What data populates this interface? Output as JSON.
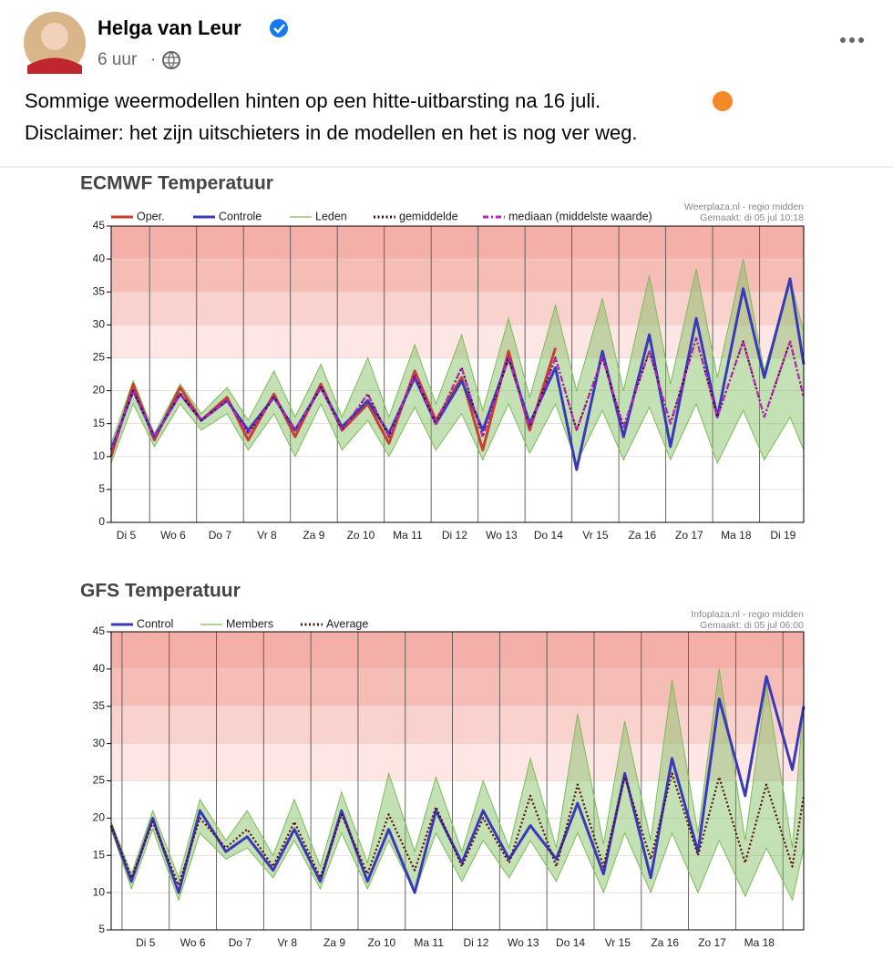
{
  "post": {
    "author": "Helga van Leur",
    "time": "6 uur",
    "text": [
      "Sommige weermodellen hinten op een hitte-uitbarsting na 16 juli.",
      "Disclaimer: het zijn uitschieters in de modellen en het is nog ver weg."
    ]
  },
  "chart_data": [
    {
      "type": "line",
      "title": "ECMWF Temperatuur",
      "source": [
        "Weerplaza.nl - regio midden",
        "Gemaakt: di 05 jul 10:18"
      ],
      "xlim": [
        5.18,
        19.94
      ],
      "ylim": [
        0,
        45
      ],
      "yticks": [
        0,
        5,
        10,
        15,
        20,
        25,
        30,
        35,
        40,
        45
      ],
      "xticks": [
        {
          "value": 5.5,
          "label": "Di 5"
        },
        {
          "value": 6.5,
          "label": "Wo 6"
        },
        {
          "value": 7.5,
          "label": "Do 7"
        },
        {
          "value": 8.5,
          "label": "Vr 8"
        },
        {
          "value": 9.5,
          "label": "Za 9"
        },
        {
          "value": 10.5,
          "label": "Zo 10"
        },
        {
          "value": 11.5,
          "label": "Ma 11"
        },
        {
          "value": 12.5,
          "label": "Di 12"
        },
        {
          "value": 13.5,
          "label": "Wo 13"
        },
        {
          "value": 14.5,
          "label": "Do 14"
        },
        {
          "value": 15.5,
          "label": "Vr 15"
        },
        {
          "value": 16.5,
          "label": "Za 16"
        },
        {
          "value": 17.5,
          "label": "Zo 17"
        },
        {
          "value": 18.5,
          "label": "Ma 18"
        },
        {
          "value": 19.5,
          "label": "Di 19"
        }
      ],
      "xgrid": [
        6,
        7,
        8,
        9,
        10,
        11,
        12,
        13,
        14,
        15,
        16,
        17,
        18,
        19
      ],
      "zones": [
        {
          "from": 25,
          "to": 30,
          "color": "#fde6e3"
        },
        {
          "from": 30,
          "to": 35,
          "color": "#fad2cd"
        },
        {
          "from": 35,
          "to": 40,
          "color": "#f6bdb6"
        },
        {
          "from": 40,
          "to": 45,
          "color": "#f4b0a8"
        }
      ],
      "x": [
        5.18,
        5.65,
        6.1,
        6.65,
        7.1,
        7.65,
        8.1,
        8.65,
        9.1,
        9.65,
        10.1,
        10.65,
        11.1,
        11.65,
        12.1,
        12.65,
        13.1,
        13.65,
        14.1,
        14.65,
        15.1,
        15.65,
        16.1,
        16.65,
        17.1,
        17.65,
        18.1,
        18.65,
        19.1,
        19.65,
        19.94
      ],
      "series": [
        {
          "name": "Oper.",
          "color": "#c8402f",
          "style": "line",
          "values": [
            10,
            21,
            12.5,
            20.5,
            15.5,
            19,
            12.5,
            19.5,
            13,
            21,
            14,
            18,
            12,
            23,
            15.5,
            22,
            11,
            26,
            14,
            26.5,
            null,
            null,
            null,
            null,
            null,
            null,
            null,
            null,
            null,
            null,
            null
          ]
        },
        {
          "name": "Controle",
          "color": "#3a3ab8",
          "style": "line",
          "values": [
            11,
            20,
            13,
            19.5,
            15.5,
            18.5,
            14,
            19,
            14,
            20.5,
            14.5,
            18.5,
            13.5,
            22,
            15,
            21.5,
            14,
            25,
            15,
            23.5,
            8,
            26,
            13,
            28.5,
            11.5,
            31,
            16,
            35.5,
            22,
            37,
            24
          ]
        },
        {
          "name": "Leden",
          "color": "#7dbb5a",
          "style": "band",
          "low": [
            9,
            18,
            11.5,
            18,
            14,
            16.5,
            11,
            16.5,
            10,
            18,
            11,
            15.5,
            10,
            17.5,
            11,
            16.5,
            9.5,
            18,
            10.5,
            18,
            9,
            17,
            9.5,
            17.5,
            9.5,
            18,
            9,
            17,
            9.5,
            16,
            11
          ],
          "high": [
            12,
            21.5,
            13.5,
            21,
            16.5,
            20.5,
            15.5,
            23,
            16,
            24,
            16,
            25,
            16,
            27,
            18,
            28.5,
            17,
            31,
            19,
            33,
            20,
            34,
            20,
            37.5,
            21,
            38.5,
            22,
            40,
            23,
            37,
            29
          ]
        },
        {
          "name": "gemiddelde",
          "color": "#3b1010",
          "style": "dotted",
          "values": [
            11,
            20,
            13,
            19.5,
            15.5,
            18.5,
            13.5,
            19,
            14,
            20.5,
            14,
            19.5,
            13,
            22.5,
            15,
            23.5,
            13,
            25,
            14.5,
            25,
            14,
            25,
            14.5,
            26,
            15,
            28,
            16,
            27.5,
            16,
            27.5,
            19
          ]
        },
        {
          "name": "mediaan (middelste waarde)",
          "color": "#c020c0",
          "style": "dashdot",
          "values": [
            11,
            20,
            13,
            19.5,
            15.5,
            18.5,
            13.5,
            19,
            14,
            20.5,
            14,
            19.5,
            13,
            22.5,
            15,
            23.5,
            13,
            25,
            14.5,
            25,
            14,
            25,
            14.5,
            26,
            15,
            28,
            16,
            27.5,
            16,
            27.5,
            19
          ]
        }
      ]
    },
    {
      "type": "line",
      "title": "GFS Temperatuur",
      "source": [
        "Infoplaza.nl - regio midden",
        "Gemaakt: di 05 jul 06:00"
      ],
      "xlim": [
        4.77,
        19.44
      ],
      "ylim": [
        5,
        45
      ],
      "yticks": [
        5,
        10,
        15,
        20,
        25,
        30,
        35,
        40,
        45
      ],
      "xticks": [
        {
          "value": 5.5,
          "label": "Di 5"
        },
        {
          "value": 6.5,
          "label": "Wo 6"
        },
        {
          "value": 7.5,
          "label": "Do 7"
        },
        {
          "value": 8.5,
          "label": "Vr 8"
        },
        {
          "value": 9.5,
          "label": "Za 9"
        },
        {
          "value": 10.5,
          "label": "Zo 10"
        },
        {
          "value": 11.5,
          "label": "Ma 11"
        },
        {
          "value": 12.5,
          "label": "Di 12"
        },
        {
          "value": 13.5,
          "label": "Wo 13"
        },
        {
          "value": 14.5,
          "label": "Do 14"
        },
        {
          "value": 15.5,
          "label": "Vr 15"
        },
        {
          "value": 16.5,
          "label": "Za 16"
        },
        {
          "value": 17.5,
          "label": "Zo 17"
        },
        {
          "value": 18.5,
          "label": "Ma 18"
        }
      ],
      "xgrid": [
        5,
        6,
        7,
        8,
        9,
        10,
        11,
        12,
        13,
        14,
        15,
        16,
        17,
        18,
        19
      ],
      "zones": [
        {
          "from": 25,
          "to": 30,
          "color": "#fde6e3"
        },
        {
          "from": 30,
          "to": 35,
          "color": "#fad2cd"
        },
        {
          "from": 35,
          "to": 40,
          "color": "#f6bdb6"
        },
        {
          "from": 40,
          "to": 45,
          "color": "#f4b0a8"
        }
      ],
      "x": [
        4.77,
        5.2,
        5.65,
        6.2,
        6.65,
        7.2,
        7.65,
        8.2,
        8.65,
        9.2,
        9.65,
        10.2,
        10.65,
        11.2,
        11.65,
        12.2,
        12.65,
        13.2,
        13.65,
        14.2,
        14.65,
        15.2,
        15.65,
        16.2,
        16.65,
        17.2,
        17.65,
        18.2,
        18.65,
        19.2,
        19.44
      ],
      "series": [
        {
          "name": "Control",
          "color": "#3a3ab8",
          "style": "line",
          "values": [
            19,
            11.5,
            20,
            10,
            21,
            15.5,
            17.5,
            13,
            18.5,
            11.5,
            21,
            11.5,
            18.5,
            10,
            21,
            14,
            21,
            14.5,
            19,
            14.5,
            22,
            12.5,
            26,
            12,
            28,
            15.5,
            36,
            23,
            39,
            26.5,
            35
          ]
        },
        {
          "name": "Members",
          "color": "#7dbb5a",
          "style": "band",
          "low": [
            18.5,
            10.5,
            18.5,
            9,
            18,
            14.5,
            16,
            12,
            17,
            10.5,
            18,
            10.5,
            17,
            10,
            18,
            11.5,
            17,
            12,
            17,
            11.5,
            18,
            10,
            18,
            10,
            18,
            10,
            17,
            9.5,
            16,
            9,
            16
          ],
          "high": [
            19.5,
            12.5,
            21,
            12,
            22.5,
            17,
            21,
            15,
            22.5,
            13.5,
            23.5,
            14,
            26,
            15.5,
            25.5,
            15.5,
            25,
            16,
            28,
            16,
            34,
            16.5,
            33,
            17,
            38.5,
            18,
            40,
            17,
            38,
            16,
            36
          ]
        },
        {
          "name": "Average",
          "color": "#5a1010",
          "style": "dotted",
          "values": [
            19,
            12,
            19.5,
            11,
            20,
            16,
            18.5,
            13.5,
            19.5,
            12,
            20.5,
            12.5,
            20.5,
            13,
            21.5,
            13.5,
            20,
            14,
            23,
            13.5,
            24.5,
            13.5,
            25.5,
            14.5,
            26,
            15,
            25.5,
            14,
            24.5,
            13.5,
            23
          ]
        }
      ]
    }
  ]
}
